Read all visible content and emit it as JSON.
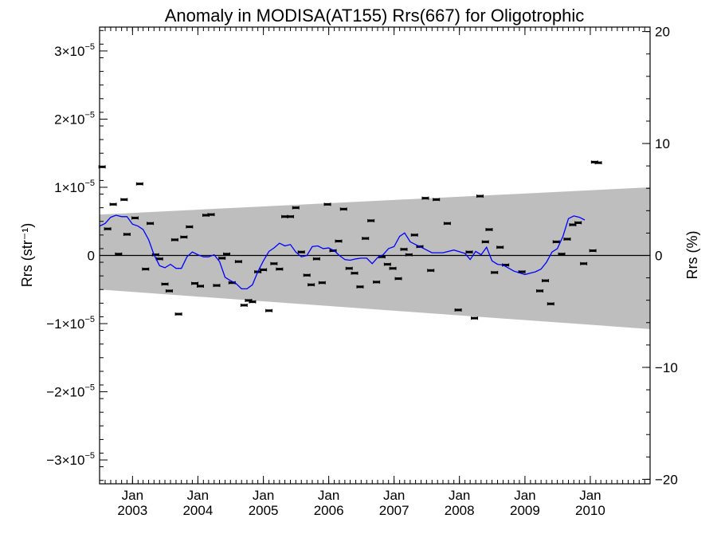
{
  "chart_data": {
    "type": "scatter",
    "title": "Anomaly in MODISA(AT155) Rrs(667) for Oligotrophic",
    "ylabel_left": "Rrs (str⁻¹)",
    "ylabel_right": "Rrs (%)",
    "xlabel": "",
    "xlim": [
      "2002-07-01",
      "2010-12-01"
    ],
    "ylim_left": [
      -3.35e-05,
      3.35e-05
    ],
    "ylim_right": [
      -20.4,
      20.4
    ],
    "y_tick_labels_left": [
      {
        "value": 3e-05,
        "mantissa": "3×10",
        "exp": "−5"
      },
      {
        "value": 2e-05,
        "mantissa": "2×10",
        "exp": "−5"
      },
      {
        "value": 1e-05,
        "mantissa": "1×10",
        "exp": "−5"
      },
      {
        "value": 0,
        "mantissa": "0",
        "exp": ""
      },
      {
        "value": -1e-05,
        "mantissa": "−1×10",
        "exp": "−5"
      },
      {
        "value": -2e-05,
        "mantissa": "−2×10",
        "exp": "−5"
      },
      {
        "value": -3e-05,
        "mantissa": "−3×10",
        "exp": "−5"
      }
    ],
    "y_tick_labels_right": [
      {
        "value": 20,
        "label": "20"
      },
      {
        "value": 10,
        "label": "10"
      },
      {
        "value": 0,
        "label": "0"
      },
      {
        "value": -10,
        "label": "−10"
      },
      {
        "value": -20,
        "label": "−20"
      }
    ],
    "x_tick_labels": [
      {
        "date": "2003-01-01",
        "month": "Jan",
        "year": "2003"
      },
      {
        "date": "2004-01-01",
        "month": "Jan",
        "year": "2004"
      },
      {
        "date": "2005-01-01",
        "month": "Jan",
        "year": "2005"
      },
      {
        "date": "2006-01-01",
        "month": "Jan",
        "year": "2006"
      },
      {
        "date": "2007-01-01",
        "month": "Jan",
        "year": "2007"
      },
      {
        "date": "2008-01-01",
        "month": "Jan",
        "year": "2008"
      },
      {
        "date": "2009-01-01",
        "month": "Jan",
        "year": "2009"
      },
      {
        "date": "2010-01-01",
        "month": "Jan",
        "year": "2010"
      }
    ],
    "band": {
      "x": [
        "2002-07-01",
        "2010-12-01"
      ],
      "upper": [
        6e-06,
        1e-05
      ],
      "lower": [
        -5e-06,
        -1.08e-05
      ],
      "color": "#bebebe"
    },
    "zero_line_color": "#000000",
    "series": [
      {
        "type": "scatter-errorbar",
        "color": "#000000",
        "points": [
          {
            "x": "2002-07-15",
            "y": 1.3e-05
          },
          {
            "x": "2002-08-15",
            "y": 3.9e-06
          },
          {
            "x": "2002-09-15",
            "y": 7.5e-06
          },
          {
            "x": "2002-10-15",
            "y": 2e-07
          },
          {
            "x": "2002-11-15",
            "y": 8.2e-06
          },
          {
            "x": "2002-12-01",
            "y": 3.1e-06
          },
          {
            "x": "2003-01-15",
            "y": 5.5e-06
          },
          {
            "x": "2003-02-10",
            "y": 1.05e-05
          },
          {
            "x": "2003-03-15",
            "y": -2e-06
          },
          {
            "x": "2003-04-10",
            "y": 4.7e-06
          },
          {
            "x": "2003-05-10",
            "y": 1e-07
          },
          {
            "x": "2003-06-01",
            "y": -5e-07
          },
          {
            "x": "2003-07-01",
            "y": -4.2e-06
          },
          {
            "x": "2003-07-25",
            "y": -5.2e-06
          },
          {
            "x": "2003-08-25",
            "y": 2.3e-06
          },
          {
            "x": "2003-09-15",
            "y": -8.6e-06
          },
          {
            "x": "2003-10-15",
            "y": 2.7e-06
          },
          {
            "x": "2003-11-15",
            "y": 4.2e-06
          },
          {
            "x": "2003-12-15",
            "y": -4.1e-06
          },
          {
            "x": "2004-01-15",
            "y": -4.5e-06
          },
          {
            "x": "2004-02-15",
            "y": 5.9e-06
          },
          {
            "x": "2004-03-15",
            "y": 6e-06
          },
          {
            "x": "2004-04-15",
            "y": -4.4e-06
          },
          {
            "x": "2004-05-15",
            "y": -4e-07
          },
          {
            "x": "2004-06-10",
            "y": 2e-07
          },
          {
            "x": "2004-07-10",
            "y": -4e-06
          },
          {
            "x": "2004-08-15",
            "y": -9e-07
          },
          {
            "x": "2004-09-15",
            "y": -7.3e-06
          },
          {
            "x": "2004-10-10",
            "y": -6.6e-06
          },
          {
            "x": "2004-11-01",
            "y": -6.8e-06
          },
          {
            "x": "2004-12-01",
            "y": -2.4e-06
          },
          {
            "x": "2005-01-01",
            "y": -2.1e-06
          },
          {
            "x": "2005-02-01",
            "y": -8.1e-06
          },
          {
            "x": "2005-03-01",
            "y": -1.2e-06
          },
          {
            "x": "2005-04-01",
            "y": -2e-06
          },
          {
            "x": "2005-05-01",
            "y": 5.7e-06
          },
          {
            "x": "2005-06-01",
            "y": 5.7e-06
          },
          {
            "x": "2005-07-01",
            "y": 7e-06
          },
          {
            "x": "2005-08-01",
            "y": 5e-07
          },
          {
            "x": "2005-09-01",
            "y": -2.9e-06
          },
          {
            "x": "2005-09-25",
            "y": -4.3e-06
          },
          {
            "x": "2005-10-25",
            "y": -5e-07
          },
          {
            "x": "2005-11-25",
            "y": -4e-06
          },
          {
            "x": "2005-12-25",
            "y": 7.5e-06
          },
          {
            "x": "2006-01-25",
            "y": 7e-07
          },
          {
            "x": "2006-02-25",
            "y": 2.1e-06
          },
          {
            "x": "2006-03-25",
            "y": 6.8e-06
          },
          {
            "x": "2006-04-25",
            "y": -1.9e-06
          },
          {
            "x": "2006-05-25",
            "y": -2.6e-06
          },
          {
            "x": "2006-06-25",
            "y": -4.6e-06
          },
          {
            "x": "2006-07-25",
            "y": 2.5e-06
          },
          {
            "x": "2006-08-25",
            "y": 5.1e-06
          },
          {
            "x": "2006-09-25",
            "y": -3.9e-06
          },
          {
            "x": "2006-10-25",
            "y": -2e-07
          },
          {
            "x": "2006-11-25",
            "y": -1.3e-06
          },
          {
            "x": "2006-12-25",
            "y": -1.9e-06
          },
          {
            "x": "2007-01-25",
            "y": -3.4e-06
          },
          {
            "x": "2007-02-25",
            "y": 9e-07
          },
          {
            "x": "2007-03-25",
            "y": 1e-07
          },
          {
            "x": "2007-04-25",
            "y": 3e-06
          },
          {
            "x": "2007-05-25",
            "y": 1.3e-06
          },
          {
            "x": "2007-06-25",
            "y": 8.4e-06
          },
          {
            "x": "2007-07-25",
            "y": -2.2e-06
          },
          {
            "x": "2007-08-25",
            "y": 8.2e-06
          },
          {
            "x": "2007-10-25",
            "y": 4.7e-06
          },
          {
            "x": "2007-12-25",
            "y": -8e-06
          },
          {
            "x": "2008-02-25",
            "y": 5e-07
          },
          {
            "x": "2008-03-25",
            "y": -9.2e-06
          },
          {
            "x": "2008-04-25",
            "y": 8.7e-06
          },
          {
            "x": "2008-05-25",
            "y": 2e-06
          },
          {
            "x": "2008-06-15",
            "y": 3.8e-06
          },
          {
            "x": "2008-07-15",
            "y": -2.5e-06
          },
          {
            "x": "2008-08-15",
            "y": 1.2e-06
          },
          {
            "x": "2008-09-15",
            "y": -1.4e-06
          },
          {
            "x": "2008-12-15",
            "y": -2.4e-06
          },
          {
            "x": "2009-03-25",
            "y": -5.2e-06
          },
          {
            "x": "2009-04-25",
            "y": -3.7e-06
          },
          {
            "x": "2009-05-25",
            "y": -7.1e-06
          },
          {
            "x": "2009-06-25",
            "y": 2e-06
          },
          {
            "x": "2009-07-25",
            "y": 2e-07
          },
          {
            "x": "2009-08-25",
            "y": 2.4e-06
          },
          {
            "x": "2009-09-25",
            "y": 4.5e-06
          },
          {
            "x": "2009-10-25",
            "y": 4.8e-06
          },
          {
            "x": "2009-11-25",
            "y": -1.2e-06
          },
          {
            "x": "2010-01-15",
            "y": 7e-07
          },
          {
            "x": "2010-01-25",
            "y": 1.37e-05
          },
          {
            "x": "2010-02-15",
            "y": 1.36e-05
          }
        ]
      },
      {
        "type": "line",
        "color": "#0000ff",
        "points": [
          {
            "x": "2002-07-01",
            "y": 4.3e-06
          },
          {
            "x": "2002-08-01",
            "y": 4.7e-06
          },
          {
            "x": "2002-09-01",
            "y": 5.6e-06
          },
          {
            "x": "2002-10-01",
            "y": 5.9e-06
          },
          {
            "x": "2002-11-01",
            "y": 5.7e-06
          },
          {
            "x": "2002-12-01",
            "y": 5.7e-06
          },
          {
            "x": "2003-01-01",
            "y": 4.6e-06
          },
          {
            "x": "2003-02-01",
            "y": 4.3e-06
          },
          {
            "x": "2003-03-01",
            "y": 3.8e-06
          },
          {
            "x": "2003-04-01",
            "y": 2.3e-06
          },
          {
            "x": "2003-05-01",
            "y": 1e-07
          },
          {
            "x": "2003-06-01",
            "y": -1.5e-06
          },
          {
            "x": "2003-07-01",
            "y": -1.8e-06
          },
          {
            "x": "2003-08-01",
            "y": -1.3e-06
          },
          {
            "x": "2003-09-01",
            "y": -1.9e-06
          },
          {
            "x": "2003-10-01",
            "y": -1.9e-06
          },
          {
            "x": "2003-11-01",
            "y": -2e-07
          },
          {
            "x": "2003-12-01",
            "y": 5e-07
          },
          {
            "x": "2004-01-01",
            "y": 1e-07
          },
          {
            "x": "2004-02-01",
            "y": -2e-07
          },
          {
            "x": "2004-03-01",
            "y": -2e-07
          },
          {
            "x": "2004-04-01",
            "y": 1e-07
          },
          {
            "x": "2004-05-01",
            "y": -9e-07
          },
          {
            "x": "2004-06-01",
            "y": -3.2e-06
          },
          {
            "x": "2004-07-01",
            "y": -3.7e-06
          },
          {
            "x": "2004-08-01",
            "y": -4.1e-06
          },
          {
            "x": "2004-09-01",
            "y": -4.9e-06
          },
          {
            "x": "2004-10-01",
            "y": -4.9e-06
          },
          {
            "x": "2004-11-01",
            "y": -4.3e-06
          },
          {
            "x": "2004-12-01",
            "y": -2.4e-06
          },
          {
            "x": "2005-01-01",
            "y": -8e-07
          },
          {
            "x": "2005-02-01",
            "y": 6e-07
          },
          {
            "x": "2005-03-01",
            "y": 1.1e-06
          },
          {
            "x": "2005-04-01",
            "y": 1.8e-06
          },
          {
            "x": "2005-05-01",
            "y": 1.4e-06
          },
          {
            "x": "2005-06-01",
            "y": 1.6e-06
          },
          {
            "x": "2005-07-01",
            "y": 5e-07
          },
          {
            "x": "2005-08-01",
            "y": -2e-07
          },
          {
            "x": "2005-09-01",
            "y": 0.0
          },
          {
            "x": "2005-10-01",
            "y": 1.3e-06
          },
          {
            "x": "2005-11-01",
            "y": 1.4e-06
          },
          {
            "x": "2005-12-01",
            "y": 1e-06
          },
          {
            "x": "2006-01-01",
            "y": 1.1e-06
          },
          {
            "x": "2006-02-01",
            "y": 7e-07
          },
          {
            "x": "2006-03-01",
            "y": 0.0
          },
          {
            "x": "2006-04-01",
            "y": -6e-07
          },
          {
            "x": "2006-05-01",
            "y": -7e-07
          },
          {
            "x": "2006-06-01",
            "y": -5e-07
          },
          {
            "x": "2006-07-01",
            "y": -4e-07
          },
          {
            "x": "2006-08-01",
            "y": -4e-07
          },
          {
            "x": "2006-09-01",
            "y": -1.2e-06
          },
          {
            "x": "2006-10-01",
            "y": -3e-07
          },
          {
            "x": "2006-11-01",
            "y": 1e-07
          },
          {
            "x": "2006-12-01",
            "y": 1e-06
          },
          {
            "x": "2007-01-01",
            "y": 1.3e-06
          },
          {
            "x": "2007-02-01",
            "y": 2.8e-06
          },
          {
            "x": "2007-03-01",
            "y": 3.3e-06
          },
          {
            "x": "2007-04-01",
            "y": 2e-06
          },
          {
            "x": "2007-05-01",
            "y": 1.6e-06
          },
          {
            "x": "2007-06-01",
            "y": 1.2e-06
          },
          {
            "x": "2007-08-01",
            "y": 4e-07
          },
          {
            "x": "2007-10-01",
            "y": 4e-07
          },
          {
            "x": "2007-12-01",
            "y": 8e-07
          },
          {
            "x": "2008-02-01",
            "y": 3e-07
          },
          {
            "x": "2008-03-01",
            "y": -6e-07
          },
          {
            "x": "2008-04-01",
            "y": 6e-07
          },
          {
            "x": "2008-05-01",
            "y": 1e-07
          },
          {
            "x": "2008-06-01",
            "y": 1.2e-06
          },
          {
            "x": "2008-07-01",
            "y": -8e-07
          },
          {
            "x": "2008-08-01",
            "y": -1.3e-06
          },
          {
            "x": "2008-09-01",
            "y": -1.4e-06
          },
          {
            "x": "2008-11-01",
            "y": -2.3e-06
          },
          {
            "x": "2009-01-01",
            "y": -2.8e-06
          },
          {
            "x": "2009-03-01",
            "y": -2.4e-06
          },
          {
            "x": "2009-04-01",
            "y": -2e-06
          },
          {
            "x": "2009-05-01",
            "y": -1e-06
          },
          {
            "x": "2009-06-01",
            "y": 5e-07
          },
          {
            "x": "2009-07-01",
            "y": 1e-06
          },
          {
            "x": "2009-08-01",
            "y": 2.8e-06
          },
          {
            "x": "2009-09-01",
            "y": 5.4e-06
          },
          {
            "x": "2009-10-01",
            "y": 5.8e-06
          },
          {
            "x": "2009-11-01",
            "y": 5.6e-06
          },
          {
            "x": "2009-12-01",
            "y": 5.2e-06
          }
        ]
      }
    ],
    "grid": false,
    "legend": "none"
  }
}
